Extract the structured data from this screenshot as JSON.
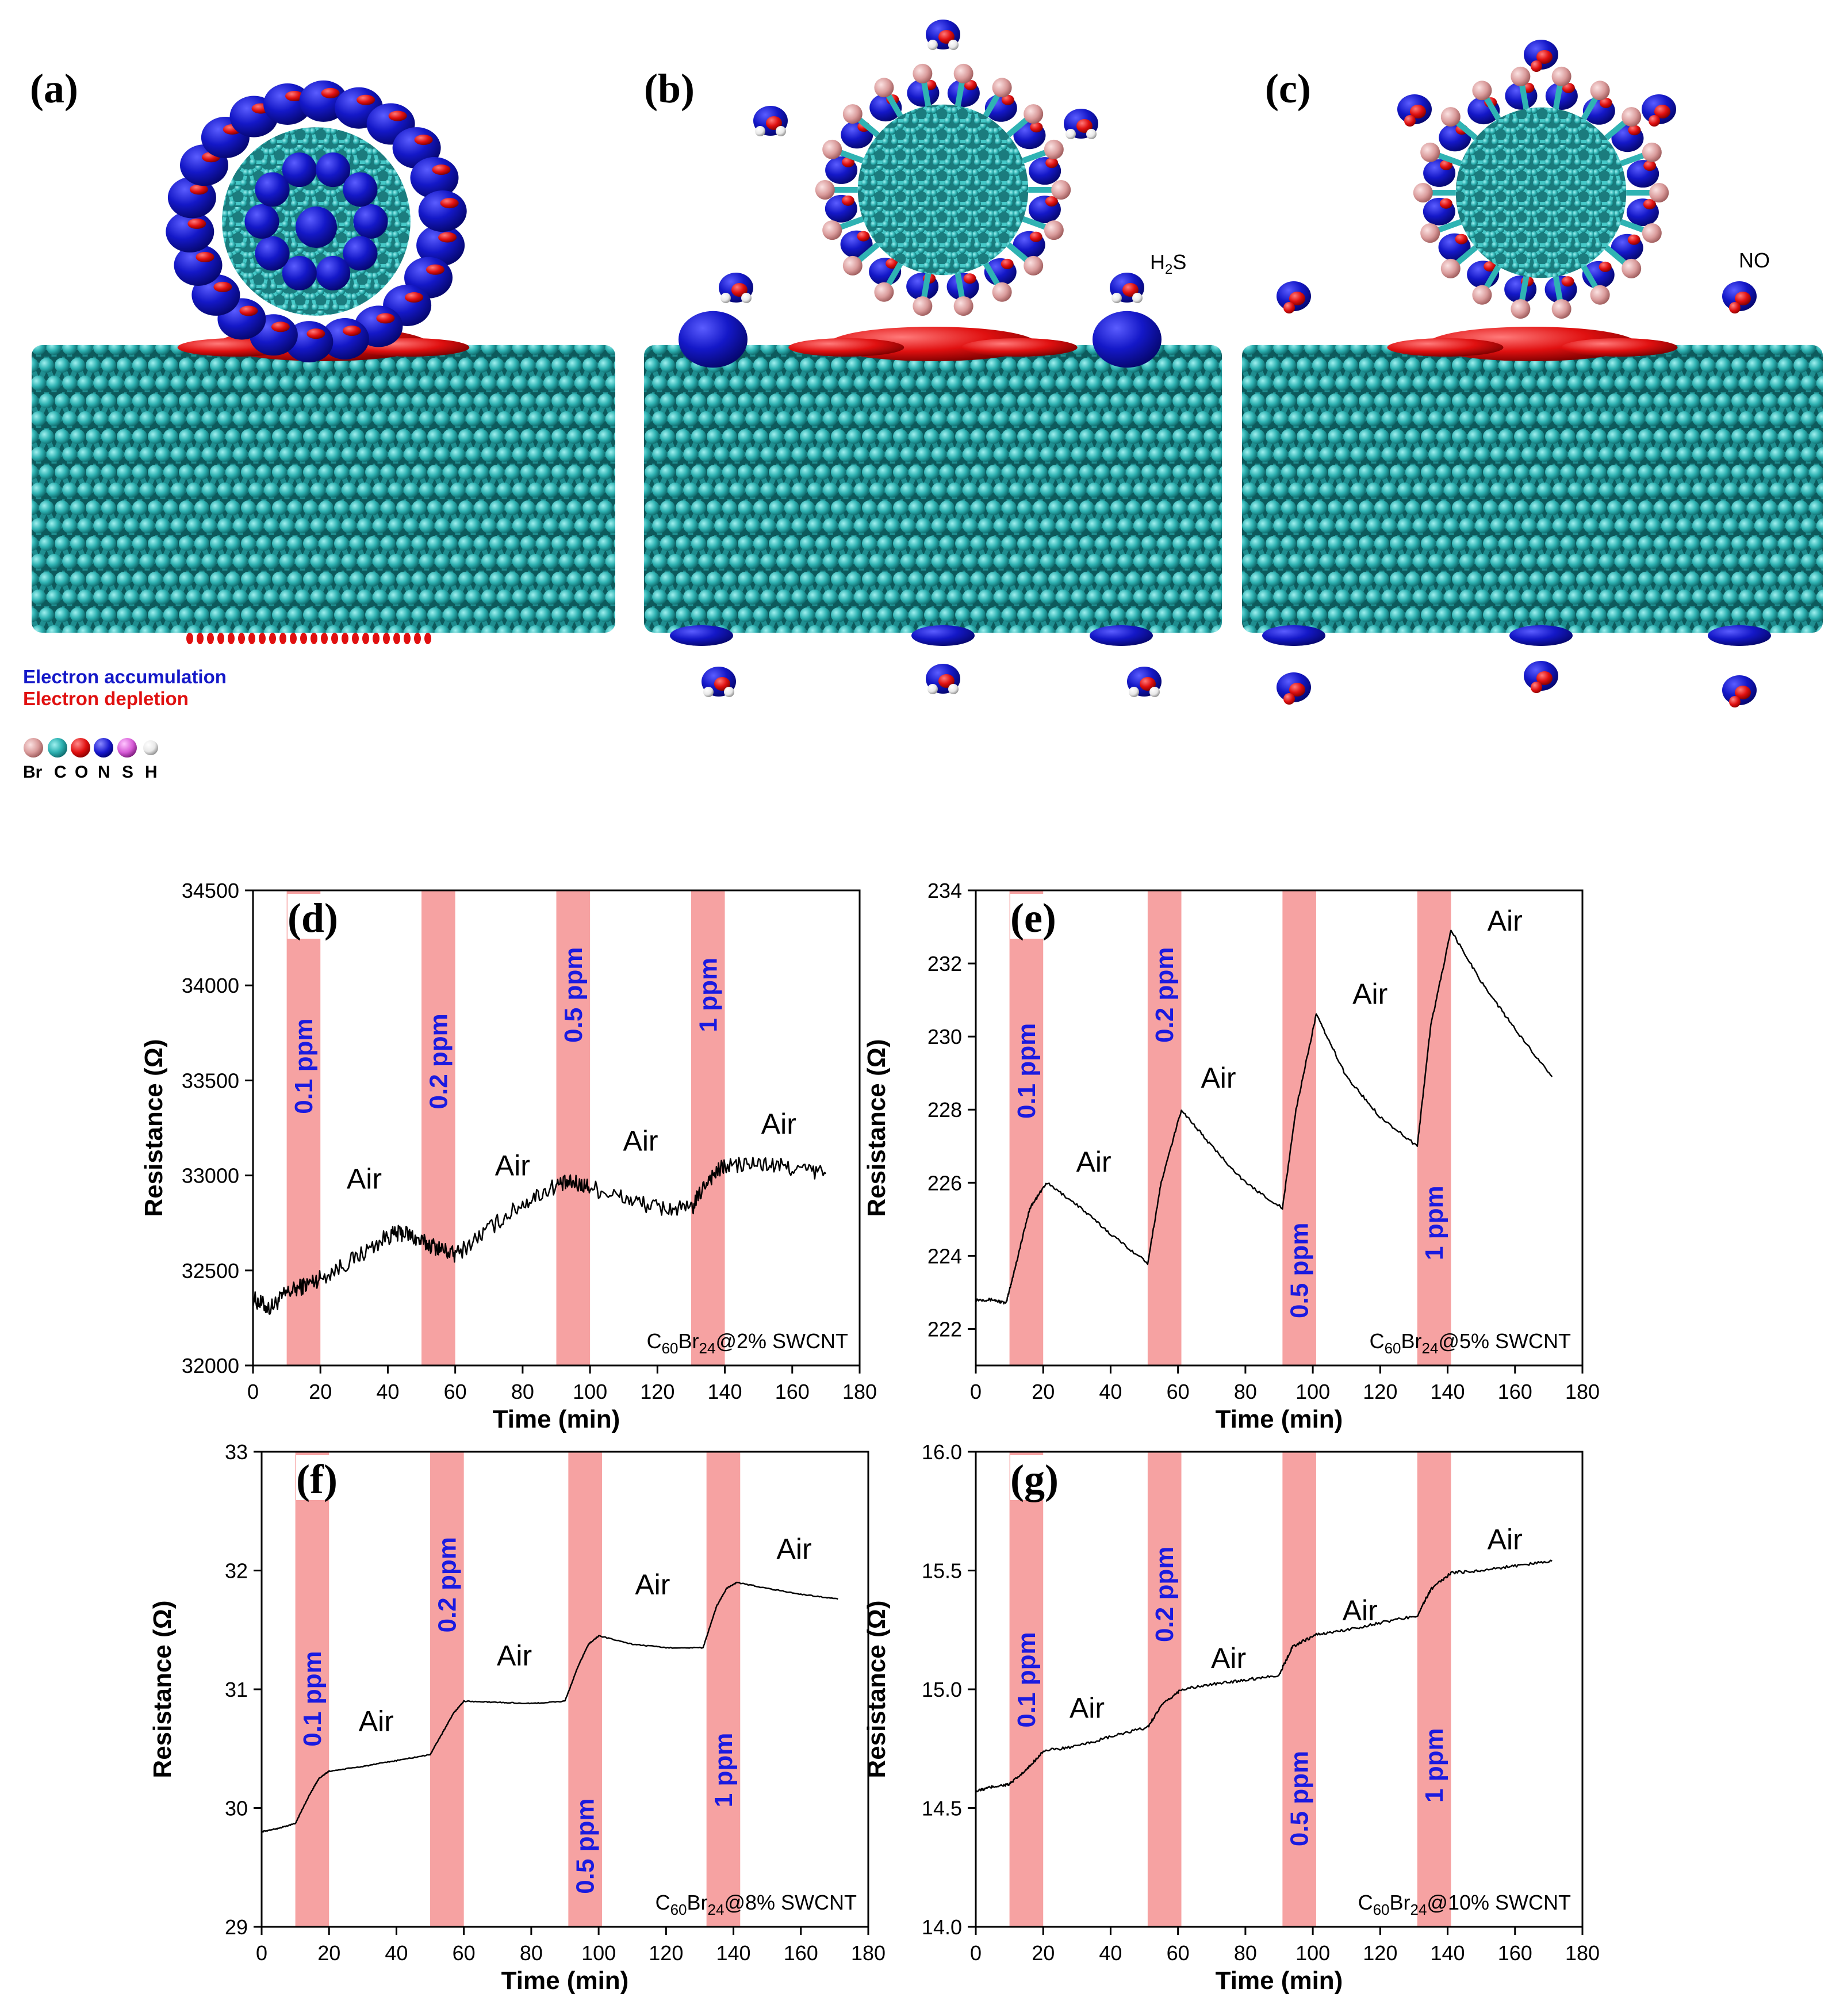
{
  "figure": {
    "panel_labels": [
      "(a)",
      "(b)",
      "(c)"
    ],
    "mol_labels": {
      "b": "H2S",
      "c": "NO"
    },
    "legend": {
      "accumulation": "Electron accumulation",
      "depletion": "Electron depletion",
      "elements": [
        "Br",
        "C",
        "O",
        "N",
        "S",
        "H"
      ]
    },
    "colors": {
      "carbon": "#2fb3b3",
      "bromine": "#d99a9a",
      "accumulation": "#1418c8",
      "depletion": "#e01010",
      "oxygen": "#e01010",
      "nitrogen": "#1a1ad0",
      "sulfur": "#d65ad6",
      "hydrogen": "#eeeeee",
      "band": "#f6a2a2",
      "ppm_text": "#1a1ae0"
    }
  },
  "chart_data": [
    {
      "panel": "(d)",
      "type": "line",
      "xlabel": "Time (min)",
      "ylabel": "Resistance (Ω)",
      "xlim": [
        0,
        180
      ],
      "ylim": [
        32000,
        34500
      ],
      "xticks": [
        0,
        20,
        40,
        60,
        80,
        100,
        120,
        140,
        160,
        180
      ],
      "yticks": [
        32000,
        32500,
        33000,
        33500,
        34000,
        34500
      ],
      "sample_label": "C60Br24@2% SWCNT",
      "exposures": [
        {
          "start": 10,
          "end": 20,
          "label": "0.1 ppm"
        },
        {
          "start": 50,
          "end": 60,
          "label": "0.2 ppm"
        },
        {
          "start": 90,
          "end": 100,
          "label": "0.5 ppm"
        },
        {
          "start": 130,
          "end": 140,
          "label": "1 ppm"
        }
      ],
      "air_labels": [
        {
          "t": 33,
          "y": 32930,
          "text": "Air"
        },
        {
          "t": 77,
          "y": 33000,
          "text": "Air"
        },
        {
          "t": 115,
          "y": 33130,
          "text": "Air"
        },
        {
          "t": 156,
          "y": 33220,
          "text": "Air"
        }
      ],
      "series": {
        "name": "",
        "x": [
          0,
          5,
          10,
          15,
          20,
          30,
          40,
          45,
          50,
          55,
          60,
          70,
          80,
          90,
          95,
          100,
          110,
          120,
          130,
          135,
          140,
          150,
          160,
          170
        ],
        "y": [
          32350,
          32300,
          32380,
          32420,
          32460,
          32560,
          32680,
          32700,
          32650,
          32620,
          32580,
          32720,
          32850,
          32950,
          32960,
          32940,
          32880,
          32830,
          32820,
          32980,
          33050,
          33060,
          33040,
          33010
        ]
      },
      "noise": 45
    },
    {
      "panel": "(e)",
      "type": "line",
      "xlabel": "Time (min)",
      "ylabel": "Resistance (Ω)",
      "xlim": [
        0,
        180
      ],
      "ylim": [
        221,
        234
      ],
      "xticks": [
        0,
        20,
        40,
        60,
        80,
        100,
        120,
        140,
        160,
        180
      ],
      "yticks": [
        222,
        224,
        226,
        228,
        230,
        232,
        234
      ],
      "sample_label": "C60Br24@5% SWCNT",
      "exposures": [
        {
          "start": 10,
          "end": 20,
          "label": "0.1 ppm"
        },
        {
          "start": 51,
          "end": 61,
          "label": "0.2 ppm"
        },
        {
          "start": 91,
          "end": 101,
          "label": "0.5 ppm"
        },
        {
          "start": 131,
          "end": 141,
          "label": "1 ppm"
        }
      ],
      "air_labels": [
        {
          "t": 35,
          "y": 226.3,
          "text": "Air"
        },
        {
          "t": 72,
          "y": 228.6,
          "text": "Air"
        },
        {
          "t": 117,
          "y": 230.9,
          "text": "Air"
        },
        {
          "t": 157,
          "y": 232.9,
          "text": "Air"
        }
      ],
      "series": {
        "name": "",
        "x": [
          0,
          5,
          9,
          12,
          16,
          21,
          30,
          40,
          51,
          55,
          61,
          70,
          80,
          91,
          95,
          101,
          110,
          120,
          131,
          135,
          141,
          150,
          160,
          171
        ],
        "y": [
          222.8,
          222.8,
          222.7,
          223.8,
          225.3,
          226.0,
          225.4,
          224.6,
          223.8,
          226.0,
          228.0,
          227.0,
          226.0,
          225.3,
          228.0,
          230.6,
          228.9,
          227.8,
          227.0,
          230.3,
          232.9,
          231.5,
          230.2,
          228.9
        ]
      },
      "noise": 0.04
    },
    {
      "panel": "(f)",
      "type": "line",
      "xlabel": "Time (min)",
      "ylabel": "Resistance (Ω)",
      "xlim": [
        0,
        180
      ],
      "ylim": [
        29,
        33
      ],
      "xticks": [
        0,
        20,
        40,
        60,
        80,
        100,
        120,
        140,
        160,
        180
      ],
      "yticks": [
        29,
        30,
        31,
        32,
        33
      ],
      "sample_label": "C60Br24@8% SWCNT",
      "exposures": [
        {
          "start": 10,
          "end": 20,
          "label": "0.1 ppm"
        },
        {
          "start": 50,
          "end": 60,
          "label": "0.2 ppm"
        },
        {
          "start": 91,
          "end": 101,
          "label": "0.5 ppm"
        },
        {
          "start": 132,
          "end": 142,
          "label": "1 ppm"
        }
      ],
      "air_labels": [
        {
          "t": 34,
          "y": 30.65,
          "text": "Air"
        },
        {
          "t": 75,
          "y": 31.2,
          "text": "Air"
        },
        {
          "t": 116,
          "y": 31.8,
          "text": "Air"
        },
        {
          "t": 158,
          "y": 32.1,
          "text": "Air"
        }
      ],
      "series": {
        "name": "",
        "x": [
          0,
          5,
          10,
          14,
          17,
          20,
          30,
          40,
          50,
          54,
          57,
          60,
          70,
          80,
          90,
          94,
          97,
          100,
          110,
          120,
          131,
          135,
          138,
          141,
          150,
          160,
          171
        ],
        "y": [
          29.8,
          29.83,
          29.87,
          30.1,
          30.25,
          30.31,
          30.35,
          30.4,
          30.45,
          30.65,
          30.8,
          30.9,
          30.89,
          30.88,
          30.9,
          31.2,
          31.38,
          31.45,
          31.38,
          31.35,
          31.35,
          31.7,
          31.85,
          31.9,
          31.85,
          31.8,
          31.76
        ]
      },
      "noise": 0.004
    },
    {
      "panel": "(g)",
      "type": "line",
      "xlabel": "Time (min)",
      "ylabel": "Resistance (Ω)",
      "xlim": [
        0,
        180
      ],
      "ylim": [
        14.0,
        16.0
      ],
      "xticks": [
        0,
        20,
        40,
        60,
        80,
        100,
        120,
        140,
        160,
        180
      ],
      "yticks": [
        14.0,
        14.5,
        15.0,
        15.5,
        16.0
      ],
      "sample_label": "C60Br24@10% SWCNT",
      "exposures": [
        {
          "start": 10,
          "end": 20,
          "label": "0.1 ppm"
        },
        {
          "start": 51,
          "end": 61,
          "label": "0.2 ppm"
        },
        {
          "start": 91,
          "end": 101,
          "label": "0.5 ppm"
        },
        {
          "start": 131,
          "end": 141,
          "label": "1 ppm"
        }
      ],
      "air_labels": [
        {
          "t": 33,
          "y": 14.88,
          "text": "Air"
        },
        {
          "t": 75,
          "y": 15.09,
          "text": "Air"
        },
        {
          "t": 114,
          "y": 15.29,
          "text": "Air"
        },
        {
          "t": 157,
          "y": 15.59,
          "text": "Air"
        }
      ],
      "series": {
        "name": "",
        "x": [
          0,
          5,
          10,
          15,
          20,
          30,
          40,
          51,
          55,
          61,
          70,
          80,
          90,
          94,
          101,
          110,
          120,
          131,
          135,
          141,
          150,
          160,
          171
        ],
        "y": [
          14.57,
          14.59,
          14.6,
          14.66,
          14.74,
          14.76,
          14.8,
          14.84,
          14.93,
          15.0,
          15.02,
          15.04,
          15.06,
          15.18,
          15.23,
          15.25,
          15.28,
          15.31,
          15.42,
          15.49,
          15.5,
          15.52,
          15.54
        ]
      },
      "noise": 0.006
    }
  ]
}
